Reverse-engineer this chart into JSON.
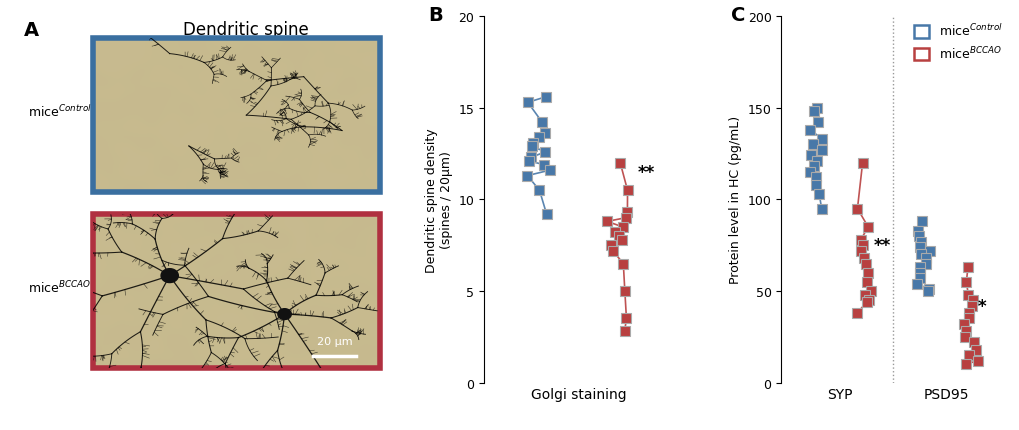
{
  "panel_A_label": "A",
  "panel_B_label": "B",
  "panel_C_label": "C",
  "panel_A_title": "Dendritic spine",
  "panel_B_xlabel": "Golgi staining",
  "panel_B_ylabel": "Dendritic spine density\n(spines / 20μm)",
  "panel_B_ylim": [
    0,
    20
  ],
  "panel_B_yticks": [
    0,
    5,
    10,
    15,
    20
  ],
  "panel_C_xlabel_1": "SYP",
  "panel_C_xlabel_2": "PSD95",
  "panel_C_ylabel": "Protein level in HC (pg/mL)",
  "panel_C_ylim": [
    0,
    200
  ],
  "panel_C_yticks": [
    0,
    50,
    100,
    150,
    200
  ],
  "blue_color": "#4878a8",
  "red_color": "#b84040",
  "gray_edge": "#aaaaaa",
  "golgi_control": [
    15.6,
    15.3,
    14.2,
    13.6,
    13.4,
    13.1,
    12.9,
    12.6,
    12.3,
    12.1,
    11.9,
    11.6,
    11.3,
    10.5,
    9.2
  ],
  "golgi_bccao": [
    12.0,
    10.5,
    9.3,
    9.0,
    8.8,
    8.5,
    8.2,
    8.0,
    7.8,
    7.5,
    7.2,
    6.5,
    5.0,
    3.5,
    2.8
  ],
  "syp_control": [
    150,
    148,
    142,
    138,
    133,
    130,
    127,
    124,
    121,
    118,
    115,
    112,
    108,
    103,
    95
  ],
  "syp_bccao": [
    120,
    95,
    85,
    78,
    75,
    72,
    68,
    65,
    60,
    55,
    50,
    45,
    38,
    48,
    44
  ],
  "psd95_control": [
    88,
    83,
    80,
    77,
    74,
    72,
    70,
    68,
    65,
    63,
    60,
    57,
    54,
    51,
    50
  ],
  "psd95_bccao": [
    63,
    55,
    48,
    45,
    42,
    38,
    35,
    32,
    28,
    25,
    22,
    18,
    15,
    12,
    10
  ],
  "sig_B": "**",
  "sig_C_SYP": "**",
  "sig_C_PSD95": "*"
}
